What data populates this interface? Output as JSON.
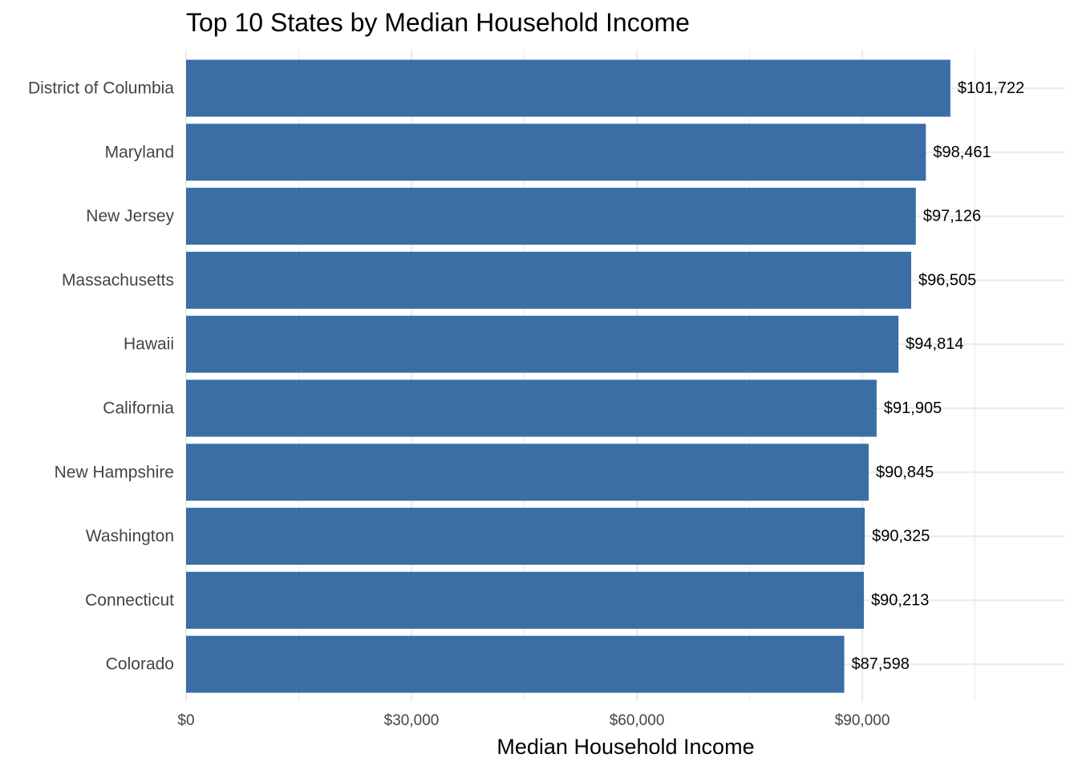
{
  "chart_data": {
    "type": "bar",
    "orientation": "horizontal",
    "title": "Top 10 States by Median Household Income",
    "xlabel": "Median Household Income",
    "ylabel": "",
    "categories": [
      "District of Columbia",
      "Maryland",
      "New Jersey",
      "Massachusetts",
      "Hawaii",
      "California",
      "New Hampshire",
      "Washington",
      "Connecticut",
      "Colorado"
    ],
    "values": [
      101722,
      98461,
      97126,
      96505,
      94814,
      91905,
      90845,
      90325,
      90213,
      87598
    ],
    "data_labels": [
      "$101,722",
      "$98,461",
      "$97,126",
      "$96,505",
      "$94,814",
      "$91,905",
      "$90,845",
      "$90,325",
      "$90,213",
      "$87,598"
    ],
    "x_ticks": [
      0,
      30000,
      60000,
      90000
    ],
    "x_tick_labels": [
      "$0",
      "$30,000",
      "$60,000",
      "$90,000"
    ],
    "xlim": [
      0,
      117000
    ],
    "grid": true,
    "legend": "none",
    "bar_color": "#3A6EA5",
    "grid_color": "#EBEBEB"
  }
}
